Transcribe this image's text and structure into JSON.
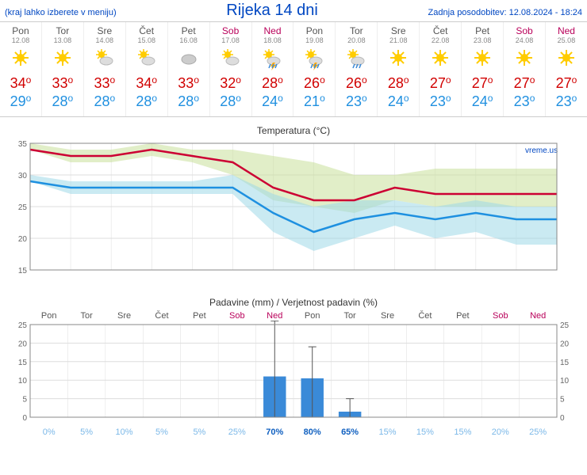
{
  "header": {
    "left": "(kraj lahko izberete v meniju)",
    "title": "Rijeka 14 dni",
    "right": "Zadnja posodobitev: 12.08.2024 - 18:24"
  },
  "days": [
    {
      "name": "Pon",
      "date": "12.08",
      "wknd": false,
      "icon": "sun",
      "hi": 34,
      "lo": 29
    },
    {
      "name": "Tor",
      "date": "13.08",
      "wknd": false,
      "icon": "sun",
      "hi": 33,
      "lo": 28
    },
    {
      "name": "Sre",
      "date": "14.08",
      "wknd": false,
      "icon": "suncloud",
      "hi": 33,
      "lo": 28
    },
    {
      "name": "Čet",
      "date": "15.08",
      "wknd": false,
      "icon": "suncloud",
      "hi": 34,
      "lo": 28
    },
    {
      "name": "Pet",
      "date": "16.08",
      "wknd": false,
      "icon": "cloud",
      "hi": 33,
      "lo": 28
    },
    {
      "name": "Sob",
      "date": "17.08",
      "wknd": true,
      "icon": "suncloud",
      "hi": 32,
      "lo": 28
    },
    {
      "name": "Ned",
      "date": "18.08",
      "wknd": true,
      "icon": "storm",
      "hi": 28,
      "lo": 24
    },
    {
      "name": "Pon",
      "date": "19.08",
      "wknd": false,
      "icon": "storm",
      "hi": 26,
      "lo": 21
    },
    {
      "name": "Tor",
      "date": "20.08",
      "wknd": false,
      "icon": "rain",
      "hi": 26,
      "lo": 23
    },
    {
      "name": "Sre",
      "date": "21.08",
      "wknd": false,
      "icon": "sun",
      "hi": 28,
      "lo": 24
    },
    {
      "name": "Čet",
      "date": "22.08",
      "wknd": false,
      "icon": "sun",
      "hi": 27,
      "lo": 23
    },
    {
      "name": "Pet",
      "date": "23.08",
      "wknd": false,
      "icon": "sun",
      "hi": 27,
      "lo": 24
    },
    {
      "name": "Sob",
      "date": "24.08",
      "wknd": true,
      "icon": "sun",
      "hi": 27,
      "lo": 23
    },
    {
      "name": "Ned",
      "date": "25.08",
      "wknd": true,
      "icon": "sun",
      "hi": 27,
      "lo": 23
    }
  ],
  "temp_chart": {
    "title": "Temperatura (°C)",
    "watermark": "vreme.us",
    "ymin": 15,
    "ymax": 35,
    "ystep": 5,
    "hi": [
      34,
      33,
      33,
      34,
      33,
      32,
      28,
      26,
      26,
      28,
      27,
      27,
      27,
      27
    ],
    "lo": [
      29,
      28,
      28,
      28,
      28,
      28,
      24,
      21,
      23,
      24,
      23,
      24,
      23,
      23
    ],
    "hi_band_top": [
      35,
      34,
      34,
      35,
      34,
      34,
      33,
      32,
      30,
      30,
      31,
      31,
      31,
      31
    ],
    "hi_band_bot": [
      34,
      32,
      32,
      33,
      32,
      30,
      26,
      25,
      24,
      26,
      25,
      25,
      25,
      25
    ],
    "lo_band_top": [
      30,
      29,
      29,
      29,
      29,
      30,
      27,
      25,
      26,
      26,
      25,
      26,
      25,
      25
    ],
    "lo_band_bot": [
      29,
      27,
      27,
      27,
      27,
      27,
      21,
      18,
      20,
      22,
      20,
      21,
      19,
      19
    ],
    "colors": {
      "hi_line": "#cc0033",
      "lo_line": "#1e90e0",
      "hi_band": "#c8e09a",
      "lo_band": "#9ed8e8",
      "grid": "#dddddd",
      "axis": "#888888",
      "text": "#666666"
    }
  },
  "precip_chart": {
    "title": "Padavine (mm) / Verjetnost padavin (%)",
    "ymin": 0,
    "ymax": 25,
    "ystep": 5,
    "bars": [
      0,
      0,
      0,
      0,
      0,
      0,
      11,
      10.5,
      1.5,
      0,
      0,
      0,
      0,
      0
    ],
    "err_top": [
      0,
      0,
      0,
      0,
      0,
      0,
      26,
      19,
      5,
      0,
      0,
      0,
      0,
      0
    ],
    "err_bot": [
      0,
      0,
      0,
      0,
      0,
      0,
      0,
      0,
      0,
      0,
      0,
      0,
      0,
      0
    ],
    "perc": [
      "0%",
      "5%",
      "10%",
      "5%",
      "5%",
      "25%",
      "70%",
      "80%",
      "65%",
      "15%",
      "15%",
      "15%",
      "20%",
      "25%"
    ],
    "perc_hi": [
      false,
      false,
      false,
      false,
      false,
      false,
      true,
      true,
      true,
      false,
      false,
      false,
      false,
      false
    ],
    "colors": {
      "bar": "#3a8ad8",
      "grid": "#dddddd",
      "axis": "#888888",
      "text": "#666666"
    }
  }
}
